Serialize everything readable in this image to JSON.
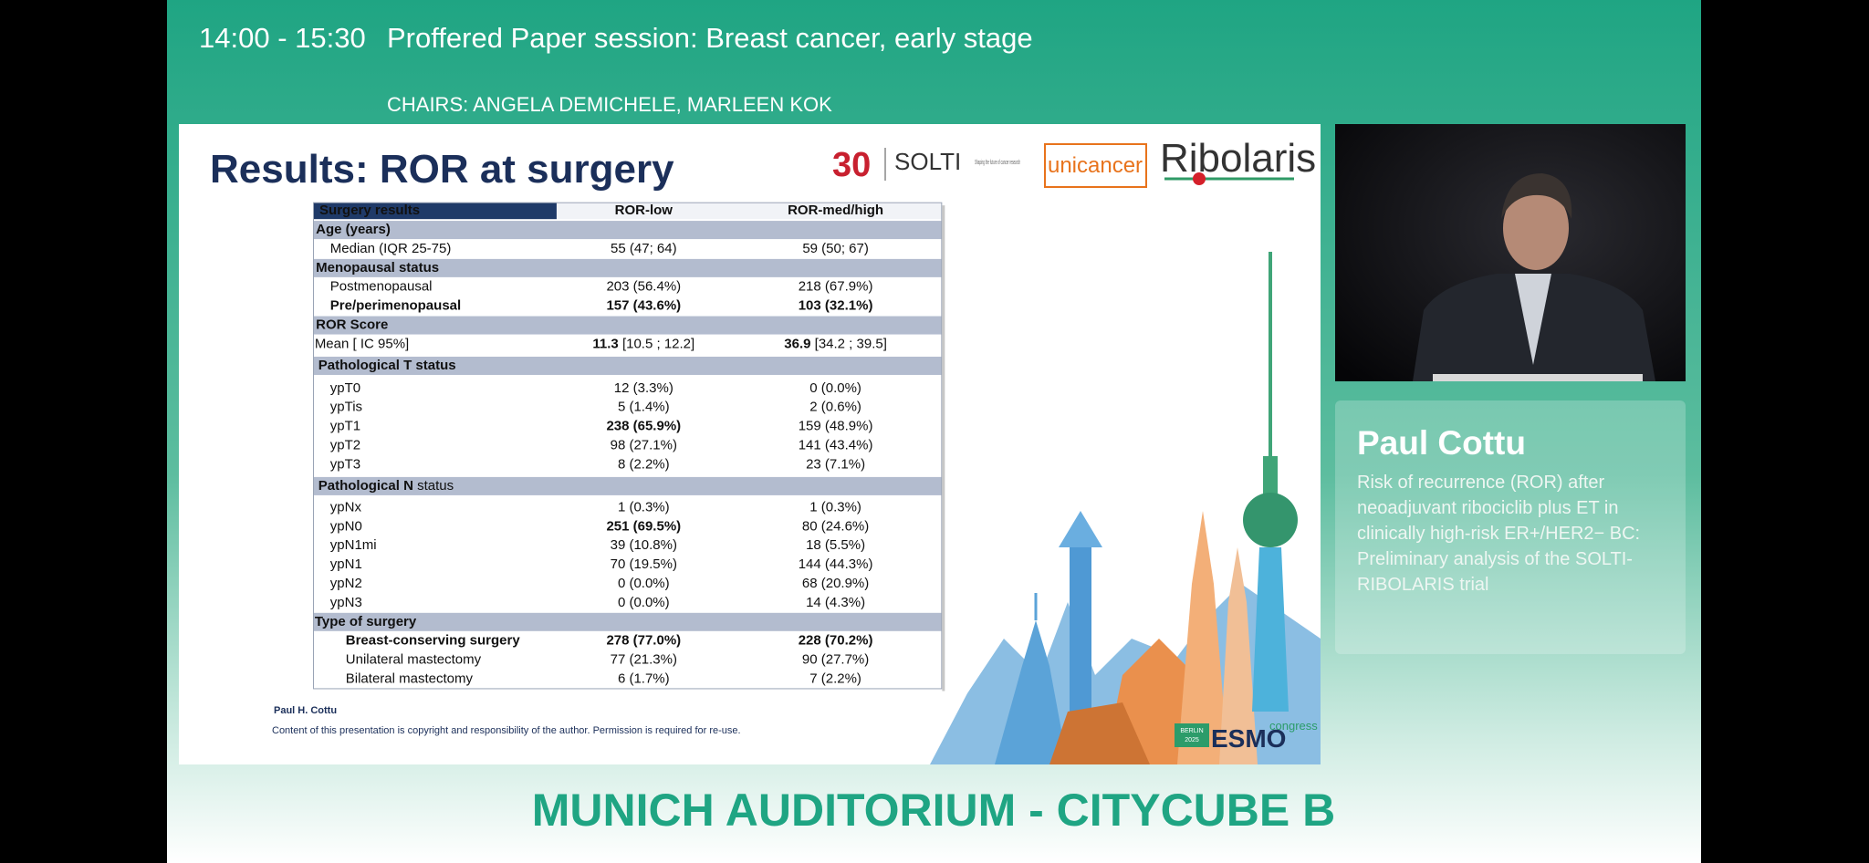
{
  "header": {
    "time": "14:00 - 15:30",
    "title": "Proffered Paper session: Breast cancer, early stage",
    "chairs": "CHAIRS: ANGELA DEMICHELE, MARLEEN KOK"
  },
  "slide": {
    "title": "Results: ROR at surgery",
    "logos": {
      "solti_mark": "30",
      "solti": "SOLTI",
      "solti_tagline": "Shaping the future of cancer research",
      "unicancer": "unicancer",
      "ribolaris": "Ribolaris"
    },
    "table": {
      "columns": [
        "Surgery results",
        "ROR-low",
        "ROR-med/high"
      ],
      "rows": [
        {
          "label": "Age (years)",
          "section": true
        },
        {
          "label": "Median (IQR 25-75)",
          "low": "55 (47; 64)",
          "high": "59 (50; 67)"
        },
        {
          "label": "Menopausal status",
          "section": true
        },
        {
          "label": "Postmenopausal",
          "low": "203 (56.4%)",
          "high": "218 (67.9%)"
        },
        {
          "label": [
            "Pre/perimenopausal"
          ],
          "low": [
            "157 (43.6%)"
          ],
          "high": [
            "103 (32.1%)"
          ]
        },
        {
          "label": "ROR Score",
          "section": true
        },
        {
          "label": "Mean [ IC 95%]",
          "low": [
            "11.3",
            "[10.5 ; 12.2]"
          ],
          "high": [
            "36.9",
            "[34.2 ; 39.5]"
          ]
        },
        {
          "label": "Pathological T status",
          "section": true
        },
        {
          "label": "ypT0",
          "low": "12 (3.3%)",
          "high": "0 (0.0%)"
        },
        {
          "label": "ypTis",
          "low": "5 (1.4%)",
          "high": "2 (0.6%)"
        },
        {
          "label": "ypT1",
          "low": [
            "238 (65.9%)"
          ],
          "high": "159 (48.9%)"
        },
        {
          "label": "ypT2",
          "low": "98 (27.1%)",
          "high": "141 (43.4%)"
        },
        {
          "label": "ypT3",
          "low": "8 (2.2%)",
          "high": "23 (7.1%)"
        },
        {
          "label": [
            "Pathological N",
            "status"
          ],
          "section": true
        },
        {
          "label": "ypNx",
          "low": "1 (0.3%)",
          "high": "1 (0.3%)"
        },
        {
          "label": "ypN0",
          "low": [
            "251 (69.5%)"
          ],
          "high": "80 (24.6%)"
        },
        {
          "label": "ypN1mi",
          "low": "39 (10.8%)",
          "high": "18 (5.5%)"
        },
        {
          "label": "ypN1",
          "low": "70 (19.5%)",
          "high": "144 (44.3%)"
        },
        {
          "label": "ypN2",
          "low": "0 (0.0%)",
          "high": "68 (20.9%)"
        },
        {
          "label": "ypN3",
          "low": "0 (0.0%)",
          "high": "14 (4.3%)"
        },
        {
          "label": "Type of surgery",
          "section": true
        },
        {
          "label": [
            "Breast-conserving surgery"
          ],
          "low": [
            "278 (77.0%)"
          ],
          "high": [
            "228 (70.2%)"
          ]
        },
        {
          "label": "Unilateral mastectomy",
          "low": "77 (21.3%)",
          "high": "90 (27.7%)"
        },
        {
          "label": "Bilateral mastectomy",
          "low": "6 (1.7%)",
          "high": "7 (2.2%)"
        }
      ]
    },
    "footer": {
      "author": "Paul H. Cottu",
      "notice": "Content of this presentation is copyright and responsibility of the author. Permission is required for re-use."
    },
    "esmo": {
      "city": "BERLIN",
      "year": "2025",
      "name": "ESMO",
      "congress": "congress"
    }
  },
  "speaker": {
    "name": "Paul Cottu",
    "talk_lines": [
      "Risk of recurrence (ROR) after",
      "neoadjuvant ribociclib plus ET in",
      "clinically high-risk ER+/HER2− BC:",
      "Preliminary analysis of the SOLTI-",
      "RIBOLARIS trial"
    ]
  },
  "venue": "MUNICH AUDITORIUM - CITYCUBE B"
}
